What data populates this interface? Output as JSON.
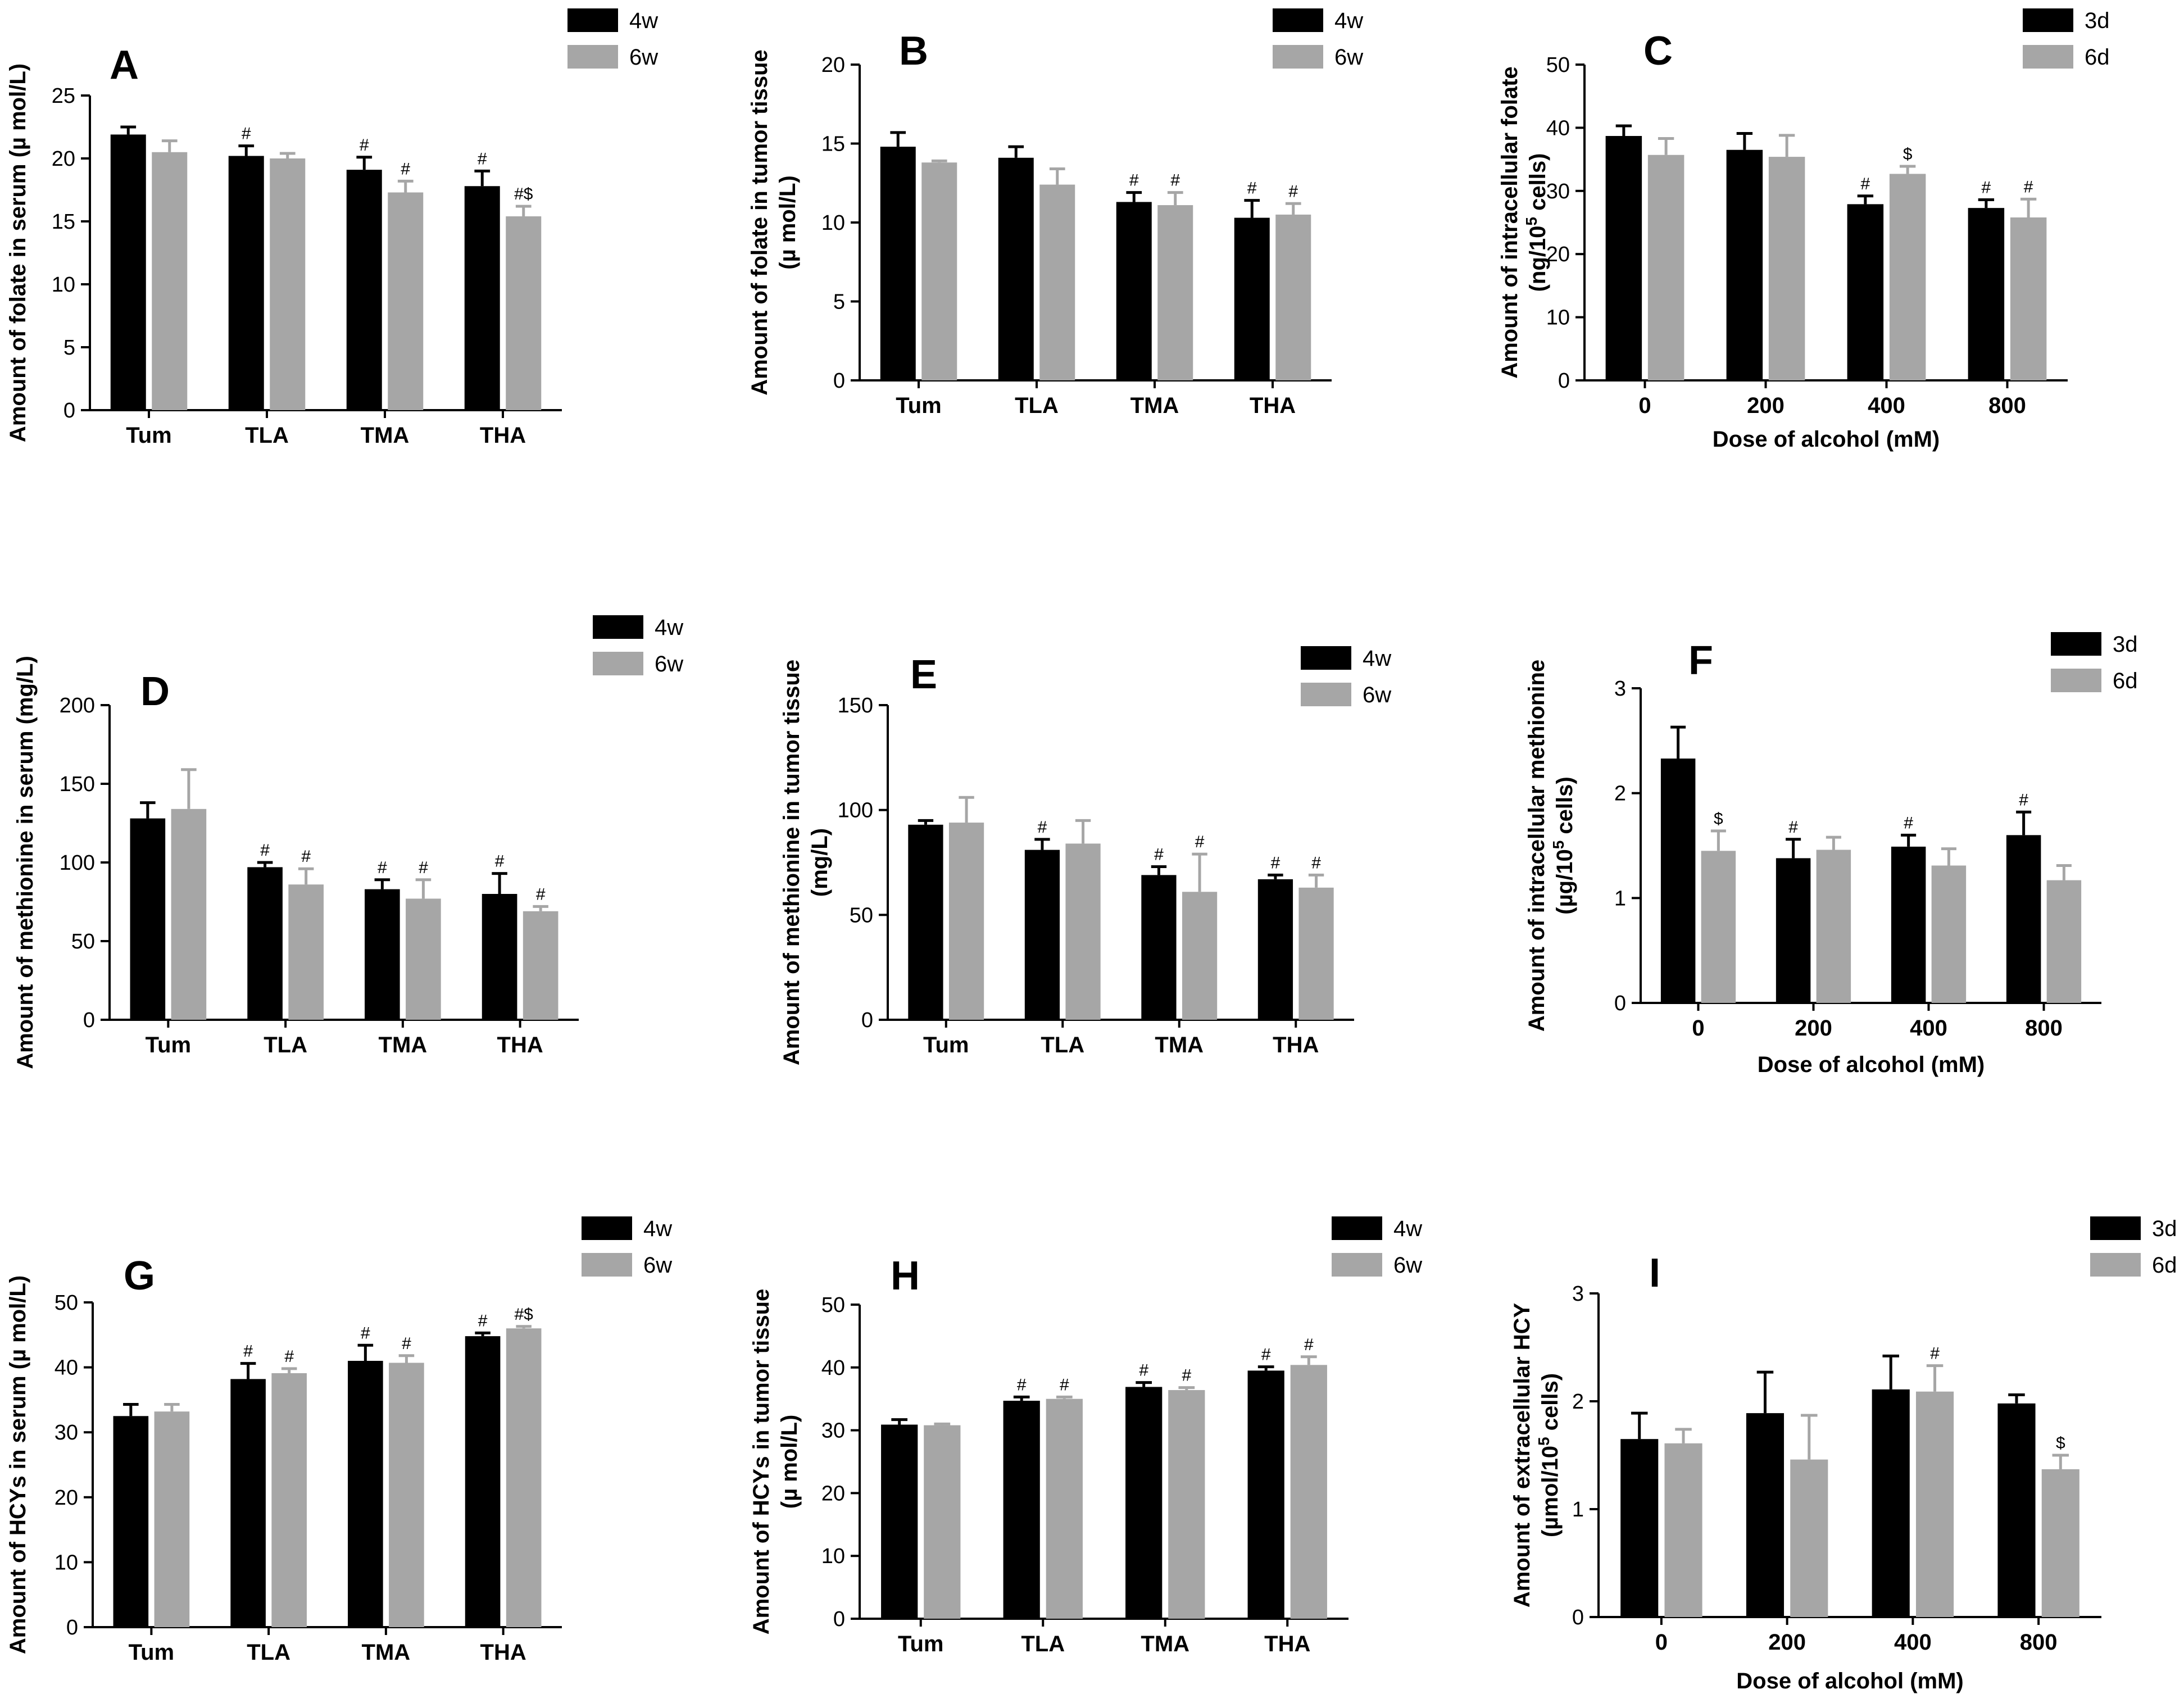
{
  "colors": {
    "series1": "#000000",
    "series2": "#a6a6a6",
    "axis": "#000000"
  },
  "chart_data": [
    {
      "id": "A",
      "type": "bar",
      "letter": "A",
      "categories": [
        "Tum",
        "TLA",
        "TMA",
        "THA"
      ],
      "series": [
        {
          "name": "4w",
          "values": [
            21.9,
            20.2,
            19.1,
            17.8
          ],
          "errors": [
            0.6,
            0.8,
            1.0,
            1.2
          ],
          "sig": [
            "",
            "#",
            "#",
            "#"
          ]
        },
        {
          "name": "6w",
          "values": [
            20.5,
            20.0,
            17.3,
            15.4
          ],
          "errors": [
            0.9,
            0.4,
            0.9,
            0.8
          ],
          "sig": [
            "",
            "",
            "#",
            "#$"
          ]
        }
      ],
      "ylim": [
        0,
        25
      ],
      "yticks": [
        0,
        5,
        10,
        15,
        20,
        25
      ],
      "ylabel": [
        "Amount of folate in serum (µ mol/L)"
      ],
      "xlabel": ""
    },
    {
      "id": "B",
      "type": "bar",
      "letter": "B",
      "categories": [
        "Tum",
        "TLA",
        "TMA",
        "THA"
      ],
      "series": [
        {
          "name": "4w",
          "values": [
            14.8,
            14.1,
            11.3,
            10.3
          ],
          "errors": [
            0.9,
            0.7,
            0.6,
            1.1
          ],
          "sig": [
            "",
            "",
            "#",
            "#"
          ]
        },
        {
          "name": "6w",
          "values": [
            13.8,
            12.4,
            11.1,
            10.5
          ],
          "errors": [
            0.1,
            1.0,
            0.8,
            0.7
          ],
          "sig": [
            "",
            "",
            "#",
            "#"
          ]
        }
      ],
      "ylim": [
        0,
        20
      ],
      "yticks": [
        0,
        5,
        10,
        15,
        20
      ],
      "ylabel": [
        "Amount of folate in tumor tissue",
        "(µ mol/L)"
      ],
      "xlabel": ""
    },
    {
      "id": "C",
      "type": "bar",
      "letter": "C",
      "categories": [
        "0",
        "200",
        "400",
        "800"
      ],
      "series": [
        {
          "name": "3d",
          "values": [
            38.7,
            36.5,
            27.9,
            27.3
          ],
          "errors": [
            1.6,
            2.6,
            1.3,
            1.3
          ],
          "sig": [
            "",
            "",
            "#",
            "#"
          ]
        },
        {
          "name": "6d",
          "values": [
            35.7,
            35.4,
            32.7,
            25.8
          ],
          "errors": [
            2.6,
            3.4,
            1.2,
            2.9
          ],
          "sig": [
            "",
            "",
            "$",
            "#"
          ]
        }
      ],
      "ylim": [
        0,
        50
      ],
      "yticks": [
        0,
        10,
        20,
        30,
        40,
        50
      ],
      "ylabel": [
        "Amount of intracellular folate",
        "(ng/10^5 cells)"
      ],
      "xlabel": "Dose of alcohol (mM)"
    },
    {
      "id": "D",
      "type": "bar",
      "letter": "D",
      "categories": [
        "Tum",
        "TLA",
        "TMA",
        "THA"
      ],
      "series": [
        {
          "name": "4w",
          "values": [
            128,
            97,
            83,
            80
          ],
          "errors": [
            10,
            3,
            6,
            13
          ],
          "sig": [
            "",
            "#",
            "#",
            "#"
          ]
        },
        {
          "name": "6w",
          "values": [
            134,
            86,
            77,
            69
          ],
          "errors": [
            25,
            10,
            12,
            3
          ],
          "sig": [
            "",
            "#",
            "#",
            "#"
          ]
        }
      ],
      "ylim": [
        0,
        200
      ],
      "yticks": [
        0,
        50,
        100,
        150,
        200
      ],
      "ylabel": [
        "Amount of methionine in serum (mg/L)"
      ],
      "xlabel": ""
    },
    {
      "id": "E",
      "type": "bar",
      "letter": "E",
      "categories": [
        "Tum",
        "TLA",
        "TMA",
        "THA"
      ],
      "series": [
        {
          "name": "4w",
          "values": [
            93,
            81,
            69,
            67
          ],
          "errors": [
            2,
            5,
            4,
            2
          ],
          "sig": [
            "",
            "#",
            "#",
            "#"
          ]
        },
        {
          "name": "6w",
          "values": [
            94,
            84,
            61,
            63
          ],
          "errors": [
            12,
            11,
            18,
            6
          ],
          "sig": [
            "",
            "",
            "#",
            "#"
          ]
        }
      ],
      "ylim": [
        0,
        150
      ],
      "yticks": [
        0,
        50,
        100,
        150
      ],
      "ylabel": [
        "Amount of methionine in tumor tissue",
        "(mg/L)"
      ],
      "xlabel": ""
    },
    {
      "id": "F",
      "type": "bar",
      "letter": "F",
      "categories": [
        "0",
        "200",
        "400",
        "800"
      ],
      "series": [
        {
          "name": "3d",
          "values": [
            2.33,
            1.38,
            1.49,
            1.6
          ],
          "errors": [
            0.3,
            0.18,
            0.11,
            0.22
          ],
          "sig": [
            "",
            "#",
            "#",
            "#"
          ]
        },
        {
          "name": "6d",
          "values": [
            1.45,
            1.46,
            1.31,
            1.17
          ],
          "errors": [
            0.19,
            0.12,
            0.16,
            0.14
          ],
          "sig": [
            "$",
            "",
            "",
            ""
          ]
        }
      ],
      "ylim": [
        0,
        3
      ],
      "yticks": [
        0,
        1,
        2,
        3
      ],
      "ylabel": [
        "Amount of intracellular methionine",
        "(µg/10^5 cells)"
      ],
      "xlabel": "Dose of alcohol (mM)"
    },
    {
      "id": "G",
      "type": "bar",
      "letter": "G",
      "categories": [
        "Tum",
        "TLA",
        "TMA",
        "THA"
      ],
      "series": [
        {
          "name": "4w",
          "values": [
            32.5,
            38.2,
            41.0,
            44.8
          ],
          "errors": [
            1.8,
            2.4,
            2.4,
            0.5
          ],
          "sig": [
            "",
            "#",
            "#",
            "#"
          ]
        },
        {
          "name": "6w",
          "values": [
            33.2,
            39.1,
            40.7,
            46.0
          ],
          "errors": [
            1.1,
            0.7,
            1.1,
            0.3
          ],
          "sig": [
            "",
            "#",
            "#",
            "#$"
          ]
        }
      ],
      "ylim": [
        0,
        50
      ],
      "yticks": [
        0,
        10,
        20,
        30,
        40,
        50
      ],
      "ylabel": [
        "Amount of HCYs in serum (µ mol/L)"
      ],
      "xlabel": ""
    },
    {
      "id": "H",
      "type": "bar",
      "letter": "H",
      "categories": [
        "Tum",
        "TLA",
        "TMA",
        "THA"
      ],
      "series": [
        {
          "name": "4w",
          "values": [
            30.9,
            34.7,
            36.9,
            39.5
          ],
          "errors": [
            0.8,
            0.6,
            0.7,
            0.6
          ],
          "sig": [
            "",
            "#",
            "#",
            "#"
          ]
        },
        {
          "name": "6w",
          "values": [
            30.8,
            35.0,
            36.4,
            40.4
          ],
          "errors": [
            0.2,
            0.3,
            0.4,
            1.3
          ],
          "sig": [
            "",
            "#",
            "#",
            "#"
          ]
        }
      ],
      "ylim": [
        0,
        50
      ],
      "yticks": [
        0,
        10,
        20,
        30,
        40,
        50
      ],
      "ylabel": [
        "Amount of HCYs in tumor tissue",
        "(µ mol/L)"
      ],
      "xlabel": ""
    },
    {
      "id": "I",
      "type": "bar",
      "letter": "I",
      "categories": [
        "0",
        "200",
        "400",
        "800"
      ],
      "series": [
        {
          "name": "3d",
          "values": [
            1.65,
            1.89,
            2.11,
            1.98
          ],
          "errors": [
            0.24,
            0.38,
            0.31,
            0.08
          ],
          "sig": [
            "",
            "",
            "",
            ""
          ]
        },
        {
          "name": "6d",
          "values": [
            1.61,
            1.46,
            2.09,
            1.37
          ],
          "errors": [
            0.13,
            0.41,
            0.24,
            0.13
          ],
          "sig": [
            "",
            "",
            "#",
            "$"
          ]
        }
      ],
      "ylim": [
        0,
        3
      ],
      "yticks": [
        0,
        1,
        2,
        3
      ],
      "ylabel": [
        "Amount of extracellular HCY",
        "(µmol/10^5 cells)"
      ],
      "xlabel": "Dose of alcohol (mM)"
    }
  ]
}
